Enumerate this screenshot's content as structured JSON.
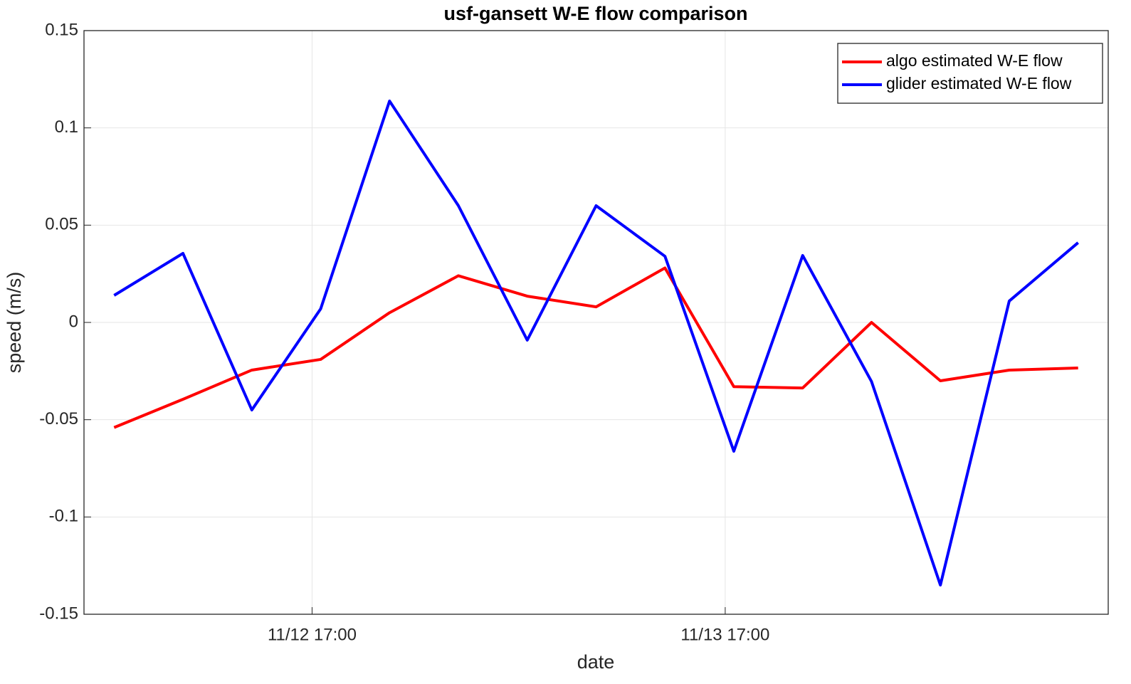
{
  "chart_data": {
    "type": "line",
    "title": "usf-gansett W-E flow comparison",
    "xlabel": "date",
    "ylabel": "speed (m/s)",
    "x": [
      "11/12 05:30",
      "11/12 09:30",
      "11/12 13:30",
      "11/12 17:30",
      "11/12 21:30",
      "11/13 01:30",
      "11/13 05:30",
      "11/13 09:30",
      "11/13 13:30",
      "11/13 17:30",
      "11/13 21:30",
      "11/14 01:30",
      "11/14 05:30",
      "11/14 09:30",
      "11/14 13:30"
    ],
    "series": [
      {
        "name": "algo estimated W-E flow",
        "color": "#ff0000",
        "values": [
          -0.054,
          -0.0395,
          -0.0245,
          -0.019,
          0.005,
          0.024,
          0.0135,
          0.008,
          0.028,
          -0.033,
          -0.0337,
          0,
          -0.03,
          -0.0245,
          -0.0234
        ]
      },
      {
        "name": "glider estimated W-E flow",
        "color": "#0000ff",
        "values": [
          0.0139,
          0.0355,
          -0.045,
          0.007,
          0.1138,
          0.06,
          -0.0091,
          0.06,
          0.034,
          -0.0662,
          0.0344,
          -0.0304,
          -0.135,
          0.011,
          0.041
        ]
      }
    ],
    "xlim": [
      "11/12 03:45",
      "11/14 15:15"
    ],
    "xticks": [
      "11/12 17:00",
      "11/13 17:00"
    ],
    "ylim": [
      -0.15,
      0.15
    ],
    "yticks": [
      -0.15,
      -0.1,
      -0.05,
      0,
      0.05,
      0.1,
      0.15
    ],
    "grid": true,
    "legend": "upper right"
  }
}
